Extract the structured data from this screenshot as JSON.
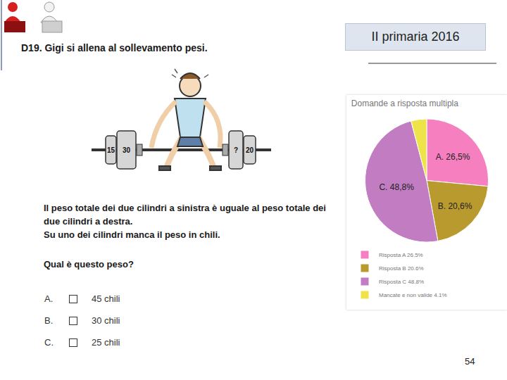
{
  "header": {
    "question": "D19. Gigi si allena al sollevamento pesi.",
    "badge": "II primaria 2016"
  },
  "illustration": {
    "left_weights": [
      "15",
      "30"
    ],
    "right_weights": [
      "?",
      "20"
    ]
  },
  "question": {
    "paragraphs": [
      "Il peso totale dei due cilindri a sinistra è uguale al peso totale dei due cilindri a destra.",
      "Su uno dei cilindri manca il peso in chili."
    ],
    "prompt": "Qual è questo peso?",
    "options": [
      {
        "letter": "A.",
        "text": "45 chili"
      },
      {
        "letter": "B.",
        "text": "30 chili"
      },
      {
        "letter": "C.",
        "text": "25 chili"
      }
    ]
  },
  "page_number": "54",
  "chart_data": {
    "type": "pie",
    "title": "Domande a risposta multipla",
    "categories": [
      "Risposta A 26.5%",
      "Risposta B 20.6%",
      "Risposta C 48.8%",
      "Mancate e non valide 4.1%"
    ],
    "values": [
      26.5,
      20.6,
      48.8,
      4.1
    ],
    "value_labels": [
      "A. 26,5%",
      "B. 20,6%",
      "C. 48,8%",
      null
    ],
    "colors": [
      "#f57fbf",
      "#b99a2e",
      "#c17cc2",
      "#eee44a"
    ],
    "data_labels": true,
    "legend": "bottom"
  }
}
